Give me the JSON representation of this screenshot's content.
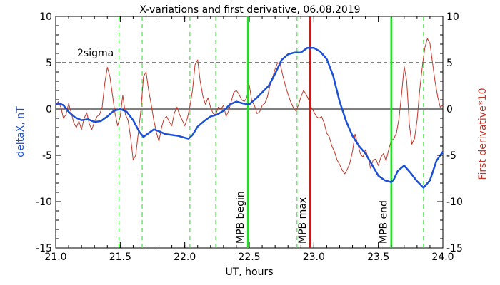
{
  "chart_data": {
    "type": "line",
    "title": "X-variations and first derivative, 06.08.2019",
    "xlabel": "UT, hours",
    "ylabel_left": "deltaX, nT",
    "ylabel_right": "First derivative*10",
    "xlim": [
      21.0,
      24.0
    ],
    "ylim": [
      -15,
      10
    ],
    "x_ticks": [
      "21.0",
      "21.5",
      "22.0",
      "22.5",
      "23.0",
      "23.5",
      "24.0"
    ],
    "y_ticks": [
      "-15",
      "-10",
      "-5",
      "0",
      "5",
      "10"
    ],
    "grid": false,
    "colors": {
      "deltaX": "#1a4fd6",
      "derivative": "#c0392b",
      "green": "#22dd22",
      "red_marker": "#dd1111",
      "zero_line": "#000000",
      "sigma_line": "#000000"
    },
    "zero_line": 0,
    "sigma_line": {
      "value": 5,
      "label": "2sigma"
    },
    "dashed_verticals": [
      21.49,
      21.67,
      22.04,
      22.24,
      22.87,
      23.85
    ],
    "markers": [
      {
        "x": 22.49,
        "label": "MPB begin",
        "color": "#22dd22"
      },
      {
        "x": 22.97,
        "label": "MPB max",
        "color": "#dd1111"
      },
      {
        "x": 23.6,
        "label": "MPB end",
        "color": "#22dd22"
      }
    ],
    "series": [
      {
        "name": "deltaX, nT",
        "x": [
          21.0,
          21.03,
          21.06,
          21.1,
          21.15,
          21.2,
          21.25,
          21.3,
          21.35,
          21.4,
          21.45,
          21.5,
          21.55,
          21.6,
          21.65,
          21.68,
          21.72,
          21.76,
          21.8,
          21.85,
          21.9,
          21.95,
          22.0,
          22.03,
          22.06,
          22.1,
          22.15,
          22.2,
          22.25,
          22.3,
          22.35,
          22.4,
          22.45,
          22.5,
          22.55,
          22.6,
          22.65,
          22.7,
          22.75,
          22.8,
          22.85,
          22.9,
          22.95,
          23.0,
          23.05,
          23.1,
          23.15,
          23.2,
          23.25,
          23.3,
          23.35,
          23.4,
          23.45,
          23.5,
          23.55,
          23.6,
          23.62,
          23.65,
          23.7,
          23.75,
          23.8,
          23.85,
          23.9,
          23.95,
          24.0
        ],
        "values": [
          0.5,
          0.6,
          0.4,
          -0.3,
          -0.9,
          -1.2,
          -1.1,
          -1.4,
          -1.3,
          -0.8,
          -0.2,
          0.0,
          -0.3,
          -1.2,
          -2.5,
          -3.0,
          -2.6,
          -2.2,
          -2.4,
          -2.7,
          -2.8,
          -2.9,
          -3.1,
          -3.2,
          -2.8,
          -1.9,
          -1.3,
          -0.8,
          -0.6,
          -0.2,
          0.5,
          0.8,
          0.6,
          0.5,
          1.1,
          1.8,
          2.5,
          3.8,
          5.3,
          5.9,
          6.1,
          6.1,
          6.6,
          6.6,
          6.2,
          5.4,
          3.6,
          0.8,
          -1.3,
          -2.9,
          -4.0,
          -4.8,
          -6.0,
          -7.2,
          -7.7,
          -7.9,
          -7.6,
          -6.7,
          -6.1,
          -6.9,
          -7.8,
          -8.5,
          -7.7,
          -5.6,
          -4.6
        ]
      },
      {
        "name": "First derivative*10",
        "x": [
          21.0,
          21.02,
          21.04,
          21.06,
          21.08,
          21.1,
          21.12,
          21.14,
          21.16,
          21.18,
          21.2,
          21.22,
          21.24,
          21.26,
          21.28,
          21.3,
          21.32,
          21.34,
          21.36,
          21.38,
          21.4,
          21.42,
          21.44,
          21.46,
          21.48,
          21.5,
          21.52,
          21.54,
          21.56,
          21.58,
          21.6,
          21.62,
          21.64,
          21.66,
          21.68,
          21.7,
          21.72,
          21.74,
          21.76,
          21.78,
          21.8,
          21.82,
          21.84,
          21.86,
          21.88,
          21.9,
          21.92,
          21.94,
          21.96,
          21.98,
          22.0,
          22.02,
          22.04,
          22.06,
          22.08,
          22.1,
          22.12,
          22.14,
          22.16,
          22.18,
          22.2,
          22.22,
          22.24,
          22.26,
          22.28,
          22.3,
          22.32,
          22.34,
          22.36,
          22.38,
          22.4,
          22.42,
          22.44,
          22.46,
          22.48,
          22.5,
          22.52,
          22.54,
          22.56,
          22.58,
          22.6,
          22.62,
          22.64,
          22.66,
          22.68,
          22.7,
          22.72,
          22.74,
          22.76,
          22.78,
          22.8,
          22.82,
          22.84,
          22.86,
          22.88,
          22.9,
          22.92,
          22.94,
          22.96,
          22.98,
          23.0,
          23.02,
          23.04,
          23.06,
          23.08,
          23.1,
          23.12,
          23.14,
          23.16,
          23.18,
          23.2,
          23.22,
          23.24,
          23.26,
          23.28,
          23.3,
          23.32,
          23.34,
          23.36,
          23.38,
          23.4,
          23.42,
          23.44,
          23.46,
          23.48,
          23.5,
          23.52,
          23.54,
          23.56,
          23.58,
          23.6,
          23.62,
          23.64,
          23.66,
          23.68,
          23.7,
          23.72,
          23.74,
          23.76,
          23.78,
          23.8,
          23.82,
          23.84,
          23.86,
          23.88,
          23.9,
          23.92,
          23.94,
          23.96,
          23.98,
          24.0
        ],
        "values": [
          0.4,
          0.8,
          0.2,
          -1.0,
          -0.6,
          0.6,
          -0.4,
          -1.5,
          -2.0,
          -1.3,
          -2.2,
          -1.0,
          -0.4,
          -1.6,
          -2.2,
          -1.4,
          -0.8,
          -0.6,
          0.2,
          2.8,
          4.5,
          3.5,
          1.5,
          -0.5,
          -1.8,
          -0.8,
          1.5,
          -0.6,
          -1.2,
          -3.0,
          -5.5,
          -5.0,
          -2.6,
          -0.2,
          3.5,
          4.0,
          2.0,
          0.5,
          -1.2,
          -2.5,
          -3.5,
          -2.0,
          -1.0,
          -0.8,
          -1.4,
          -1.8,
          -0.4,
          0.2,
          -0.6,
          -1.2,
          -1.8,
          -1.0,
          0.3,
          2.0,
          4.8,
          5.3,
          3.0,
          1.4,
          0.5,
          1.2,
          0.2,
          -0.5,
          -0.6,
          0.2,
          0.0,
          0.4,
          -0.8,
          -0.2,
          0.8,
          1.8,
          2.0,
          1.6,
          1.0,
          0.8,
          1.2,
          2.6,
          0.8,
          0.4,
          -0.5,
          -0.3,
          0.4,
          0.6,
          1.3,
          2.5,
          3.4,
          4.3,
          5.0,
          4.8,
          3.6,
          2.5,
          1.6,
          0.8,
          0.2,
          -0.2,
          0.4,
          1.3,
          2.0,
          1.6,
          1.0,
          0.2,
          -0.3,
          -0.8,
          -1.0,
          -0.8,
          -1.5,
          -2.6,
          -3.0,
          -4.0,
          -4.6,
          -5.5,
          -6.0,
          -6.6,
          -7.0,
          -6.5,
          -5.8,
          -4.6,
          -2.7,
          -3.8,
          -4.8,
          -5.2,
          -4.4,
          -5.2,
          -6.4,
          -5.5,
          -5.4,
          -6.1,
          -5.2,
          -4.8,
          -5.6,
          -4.4,
          -3.4,
          -3.2,
          -2.6,
          -1.0,
          1.6,
          4.6,
          3.0,
          -1.6,
          -3.8,
          -3.2,
          -1.2,
          2.0,
          4.5,
          6.6,
          7.6,
          7.1,
          5.0,
          2.9,
          1.3,
          0.2,
          0.4
        ]
      }
    ]
  }
}
